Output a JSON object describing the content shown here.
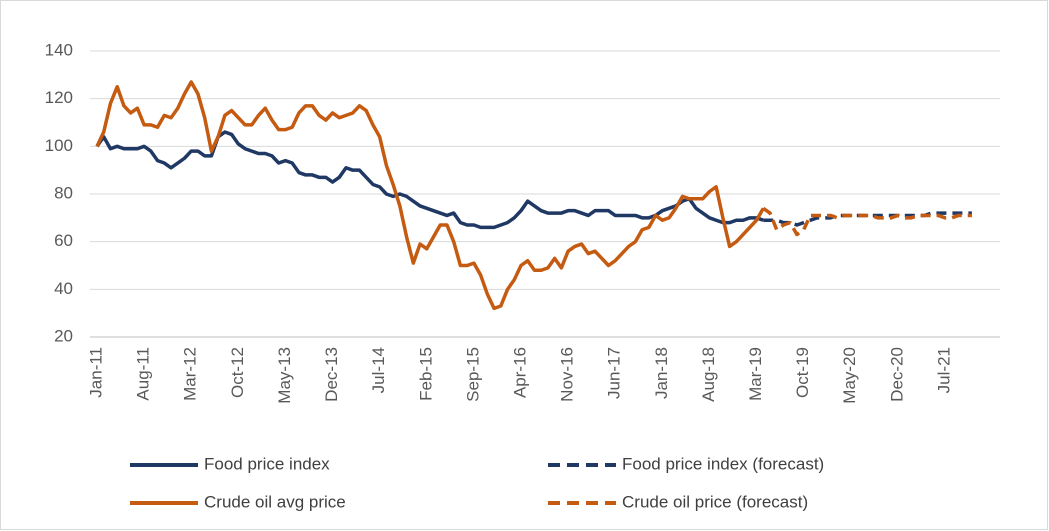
{
  "chart_data": {
    "type": "line",
    "categories": [
      "Jan-11",
      null,
      null,
      null,
      null,
      null,
      null,
      "Aug-11",
      null,
      null,
      null,
      null,
      null,
      null,
      "Mar-12",
      null,
      null,
      null,
      null,
      null,
      null,
      "Oct-12",
      null,
      null,
      null,
      null,
      null,
      null,
      "May-13",
      null,
      null,
      null,
      null,
      null,
      null,
      "Dec-13",
      null,
      null,
      null,
      null,
      null,
      null,
      "Jul-14",
      null,
      null,
      null,
      null,
      null,
      null,
      "Feb-15",
      null,
      null,
      null,
      null,
      null,
      null,
      "Sep-15",
      null,
      null,
      null,
      null,
      null,
      null,
      "Apr-16",
      null,
      null,
      null,
      null,
      null,
      null,
      "Nov-16",
      null,
      null,
      null,
      null,
      null,
      null,
      "Jun-17",
      null,
      null,
      null,
      null,
      null,
      null,
      "Jan-18",
      null,
      null,
      null,
      null,
      null,
      null,
      "Aug-18",
      null,
      null,
      null,
      null,
      null,
      null,
      "Mar-19",
      null,
      null,
      null,
      null,
      null,
      null,
      "Oct-19",
      null,
      null,
      null,
      null,
      null,
      null,
      "May-20",
      null,
      null,
      null,
      null,
      null,
      null,
      "Dec-20",
      null,
      null,
      null,
      null,
      null,
      null,
      "Jul-21",
      null,
      null,
      null,
      null
    ],
    "series": [
      {
        "name": "Food price index",
        "color": "#1f3864",
        "dashed": false,
        "values": [
          100,
          104,
          99,
          100,
          99,
          99,
          99,
          100,
          98,
          94,
          93,
          91,
          93,
          95,
          98,
          98,
          96,
          96,
          104,
          106,
          105,
          101,
          99,
          98,
          97,
          97,
          96,
          93,
          94,
          93,
          89,
          88,
          88,
          87,
          87,
          85,
          87,
          91,
          90,
          90,
          87,
          84,
          83,
          80,
          79,
          80,
          79,
          77,
          75,
          74,
          73,
          72,
          71,
          72,
          68,
          67,
          67,
          66,
          66,
          66,
          67,
          68,
          70,
          73,
          77,
          75,
          73,
          72,
          72,
          72,
          73,
          73,
          72,
          71,
          73,
          73,
          73,
          71,
          71,
          71,
          71,
          70,
          70,
          71,
          73,
          74,
          75,
          77,
          78,
          74,
          72,
          70,
          69,
          68,
          68,
          69,
          69,
          70,
          70,
          69,
          null,
          null,
          null,
          null,
          null,
          null,
          null,
          null,
          null,
          null,
          null,
          null,
          null,
          null,
          null,
          null,
          null,
          null,
          null,
          null,
          null,
          null,
          null,
          null,
          null,
          null,
          null,
          null,
          null,
          null,
          null
        ]
      },
      {
        "name": "Food price index (forecast)",
        "color": "#1f3864",
        "dashed": true,
        "values": [
          null,
          null,
          null,
          null,
          null,
          null,
          null,
          null,
          null,
          null,
          null,
          null,
          null,
          null,
          null,
          null,
          null,
          null,
          null,
          null,
          null,
          null,
          null,
          null,
          null,
          null,
          null,
          null,
          null,
          null,
          null,
          null,
          null,
          null,
          null,
          null,
          null,
          null,
          null,
          null,
          null,
          null,
          null,
          null,
          null,
          null,
          null,
          null,
          null,
          null,
          null,
          null,
          null,
          null,
          null,
          null,
          null,
          null,
          null,
          null,
          null,
          null,
          null,
          null,
          null,
          null,
          null,
          null,
          null,
          null,
          null,
          null,
          null,
          null,
          null,
          null,
          null,
          null,
          null,
          null,
          null,
          null,
          null,
          null,
          null,
          null,
          null,
          null,
          null,
          null,
          null,
          null,
          null,
          null,
          null,
          null,
          null,
          null,
          null,
          69,
          69,
          69,
          68,
          68,
          67,
          68,
          69,
          70,
          70,
          70,
          71,
          71,
          71,
          71,
          71,
          71,
          71,
          71,
          71,
          71,
          71,
          71,
          71,
          71,
          72,
          72,
          72,
          72,
          72,
          72,
          72
        ]
      },
      {
        "name": "Crude oil avg price",
        "color": "#c55a11",
        "dashed": false,
        "values": [
          100,
          106,
          118,
          125,
          117,
          114,
          116,
          109,
          109,
          108,
          113,
          112,
          116,
          122,
          127,
          122,
          112,
          98,
          104,
          113,
          115,
          112,
          109,
          109,
          113,
          116,
          111,
          107,
          107,
          108,
          114,
          117,
          117,
          113,
          111,
          114,
          112,
          113,
          114,
          117,
          115,
          109,
          104,
          92,
          84,
          75,
          62,
          51,
          59,
          57,
          62,
          67,
          67,
          60,
          50,
          50,
          51,
          46,
          38,
          32,
          33,
          40,
          44,
          50,
          52,
          48,
          48,
          49,
          53,
          49,
          56,
          58,
          59,
          55,
          56,
          53,
          50,
          52,
          55,
          58,
          60,
          65,
          66,
          71,
          69,
          70,
          74,
          79,
          78,
          78,
          78,
          81,
          83,
          70,
          58,
          60,
          63,
          66,
          69,
          74,
          null,
          null,
          null,
          null,
          null,
          null,
          null,
          null,
          null,
          null,
          null,
          null,
          null,
          null,
          null,
          null,
          null,
          null,
          null,
          null,
          null,
          null,
          null,
          null,
          null,
          null,
          null,
          null,
          null,
          null,
          null
        ]
      },
      {
        "name": "Crude oil price (forecast)",
        "color": "#c55a11",
        "dashed": true,
        "values": [
          null,
          null,
          null,
          null,
          null,
          null,
          null,
          null,
          null,
          null,
          null,
          null,
          null,
          null,
          null,
          null,
          null,
          null,
          null,
          null,
          null,
          null,
          null,
          null,
          null,
          null,
          null,
          null,
          null,
          null,
          null,
          null,
          null,
          null,
          null,
          null,
          null,
          null,
          null,
          null,
          null,
          null,
          null,
          null,
          null,
          null,
          null,
          null,
          null,
          null,
          null,
          null,
          null,
          null,
          null,
          null,
          null,
          null,
          null,
          null,
          null,
          null,
          null,
          null,
          null,
          null,
          null,
          null,
          null,
          null,
          null,
          null,
          null,
          null,
          null,
          null,
          null,
          null,
          null,
          null,
          null,
          null,
          null,
          null,
          null,
          null,
          null,
          null,
          null,
          null,
          null,
          null,
          null,
          null,
          null,
          null,
          null,
          null,
          null,
          74,
          72,
          65,
          67,
          68,
          63,
          65,
          71,
          71,
          71,
          71,
          70,
          71,
          71,
          71,
          71,
          71,
          70,
          70,
          70,
          71,
          70,
          70,
          71,
          71,
          71,
          71,
          70,
          70,
          71,
          71,
          71
        ]
      }
    ],
    "ylim": [
      20,
      140
    ],
    "yticks": [
      20,
      40,
      60,
      80,
      100,
      120,
      140
    ],
    "grid": true,
    "legend": "bottom"
  }
}
